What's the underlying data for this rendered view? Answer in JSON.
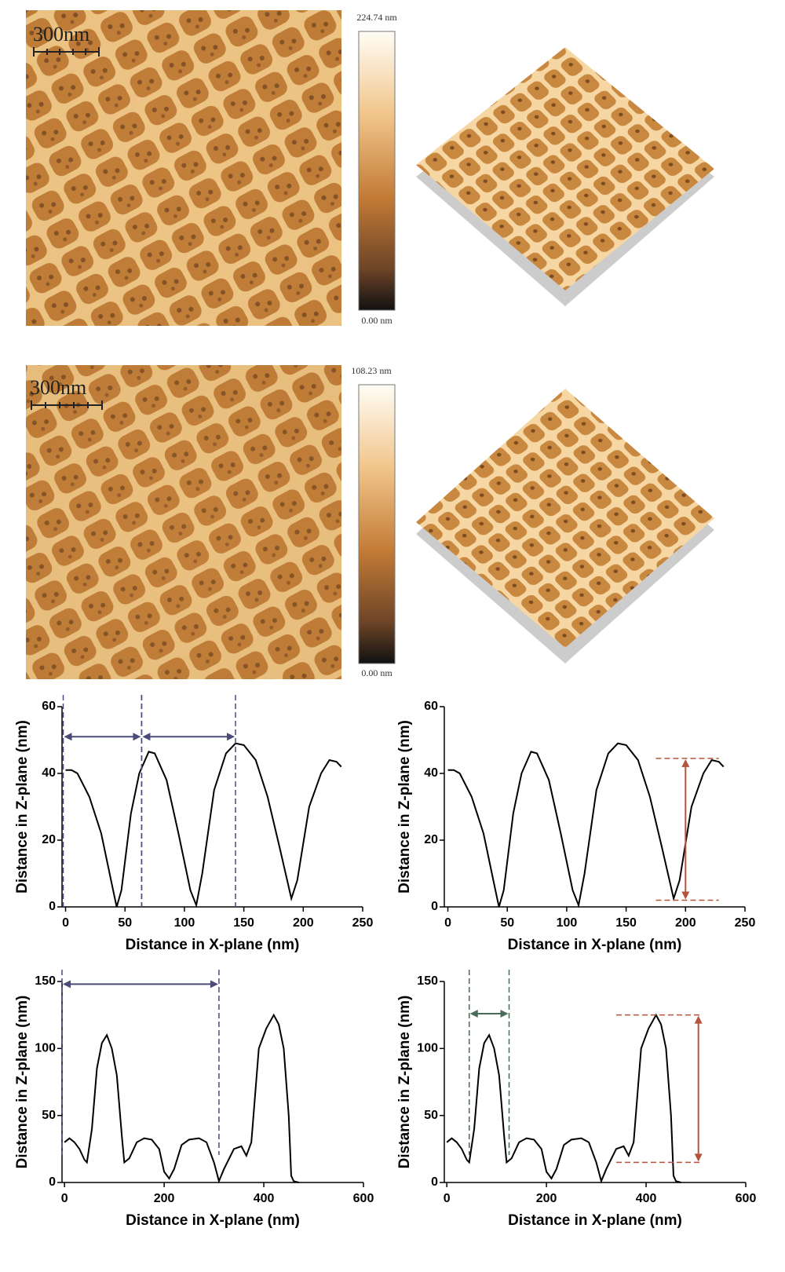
{
  "images": [
    {
      "scale_bar": "300nm",
      "max": "224.74 nm",
      "min": "0.00 nm"
    },
    {
      "scale_bar": "300nm",
      "max": "108.23 nm",
      "min": "0.00 nm"
    }
  ],
  "chart_data": [
    {
      "type": "line",
      "xlabel": "Distance in X-plane (nm)",
      "ylabel": "Distance in Z-plane (nm)",
      "x": [
        0,
        5,
        10,
        20,
        30,
        40,
        43,
        47,
        55,
        62,
        70,
        75,
        85,
        95,
        105,
        110,
        115,
        125,
        135,
        143,
        150,
        160,
        170,
        180,
        190,
        195,
        205,
        215,
        222,
        228,
        232
      ],
      "values": [
        41,
        41,
        40,
        33,
        22,
        5,
        0,
        5,
        28,
        40,
        46.5,
        46,
        38,
        22,
        5,
        0.5,
        10,
        35,
        46,
        49,
        48.5,
        44,
        33,
        18,
        2.5,
        8,
        30,
        40,
        44,
        43.5,
        42
      ],
      "color": "#000000",
      "xlim": [
        -3,
        250
      ],
      "ylim": [
        0,
        60
      ],
      "xticks": [
        0,
        50,
        100,
        150,
        200,
        250
      ],
      "yticks": [
        0,
        20,
        40,
        60
      ],
      "annotations": [
        {
          "kind": "vspan",
          "x": [
            -2,
            64
          ],
          "y": 51,
          "color": "#4b4b7a"
        },
        {
          "kind": "vspan",
          "x": [
            64,
            143
          ],
          "y": 51,
          "color": "#4b4b7a"
        }
      ]
    },
    {
      "type": "line",
      "xlabel": "Distance in X-plane (nm)",
      "ylabel": "Distance in Z-plane (nm)",
      "x": [
        0,
        5,
        10,
        20,
        30,
        40,
        43,
        47,
        55,
        62,
        70,
        75,
        85,
        95,
        105,
        110,
        115,
        125,
        135,
        143,
        150,
        160,
        170,
        180,
        190,
        195,
        205,
        215,
        222,
        228,
        232
      ],
      "values": [
        41,
        41,
        40,
        33,
        22,
        5,
        0,
        5,
        28,
        40,
        46.5,
        46,
        38,
        22,
        5,
        0.5,
        10,
        35,
        46,
        49,
        48.5,
        44,
        33,
        18,
        2.5,
        8,
        30,
        40,
        44,
        43.5,
        42
      ],
      "color": "#000000",
      "xlim": [
        -3,
        250
      ],
      "ylim": [
        0,
        60
      ],
      "xticks": [
        0,
        50,
        100,
        150,
        200,
        250
      ],
      "yticks": [
        0,
        20,
        40,
        60
      ],
      "annotations": [
        {
          "kind": "hspan",
          "y": [
            44.5,
            2
          ],
          "x": 200,
          "xrange": [
            175,
            228
          ],
          "color": "#b5533c"
        }
      ]
    },
    {
      "type": "line",
      "xlabel": "Distance in X-plane (nm)",
      "ylabel": "Distance in Z-plane (nm)",
      "x": [
        0,
        10,
        20,
        30,
        40,
        45,
        55,
        65,
        75,
        85,
        95,
        105,
        115,
        120,
        130,
        145,
        160,
        175,
        190,
        200,
        210,
        220,
        235,
        250,
        270,
        285,
        300,
        310,
        320,
        340,
        355,
        365,
        375,
        390,
        405,
        420,
        430,
        440,
        450,
        455,
        460,
        470
      ],
      "values": [
        30,
        33,
        30,
        25,
        17,
        15,
        40,
        85,
        104,
        110,
        100,
        80,
        35,
        15,
        18,
        30,
        33,
        32,
        25,
        8,
        3,
        10,
        28,
        32,
        33,
        30,
        15,
        1,
        10,
        25,
        27,
        20,
        30,
        100,
        115,
        125,
        118,
        100,
        50,
        5,
        1,
        0
      ],
      "color": "#000000",
      "xlim": [
        -5,
        600
      ],
      "ylim": [
        0,
        150
      ],
      "xticks": [
        0,
        200,
        400,
        600
      ],
      "yticks": [
        0,
        50,
        100,
        150
      ],
      "annotations": [
        {
          "kind": "vspan",
          "x": [
            -5,
            310
          ],
          "y": 148,
          "color": "#4b4b7a"
        }
      ]
    },
    {
      "type": "line",
      "xlabel": "Distance in X-plane (nm)",
      "ylabel": "Distance in Z-plane (nm)",
      "x": [
        0,
        10,
        20,
        30,
        40,
        45,
        55,
        65,
        75,
        85,
        95,
        105,
        115,
        120,
        130,
        145,
        160,
        175,
        190,
        200,
        210,
        220,
        235,
        250,
        270,
        285,
        300,
        310,
        320,
        340,
        355,
        365,
        375,
        390,
        405,
        420,
        430,
        440,
        450,
        455,
        460,
        470
      ],
      "values": [
        30,
        33,
        30,
        25,
        17,
        15,
        40,
        85,
        104,
        110,
        100,
        80,
        35,
        15,
        18,
        30,
        33,
        32,
        25,
        8,
        3,
        10,
        28,
        32,
        33,
        30,
        15,
        1,
        10,
        25,
        27,
        20,
        30,
        100,
        115,
        125,
        118,
        100,
        50,
        5,
        1,
        0
      ],
      "color": "#000000",
      "xlim": [
        -5,
        600
      ],
      "ylim": [
        0,
        150
      ],
      "xticks": [
        0,
        200,
        400,
        600
      ],
      "yticks": [
        0,
        50,
        100,
        150
      ],
      "annotations": [
        {
          "kind": "vspan",
          "x": [
            45,
            125
          ],
          "y": 126,
          "color": "#4a6b5a"
        },
        {
          "kind": "hspan",
          "y": [
            125,
            15
          ],
          "x": 505,
          "xrange": [
            340,
            510
          ],
          "color": "#b5533c"
        }
      ]
    }
  ]
}
